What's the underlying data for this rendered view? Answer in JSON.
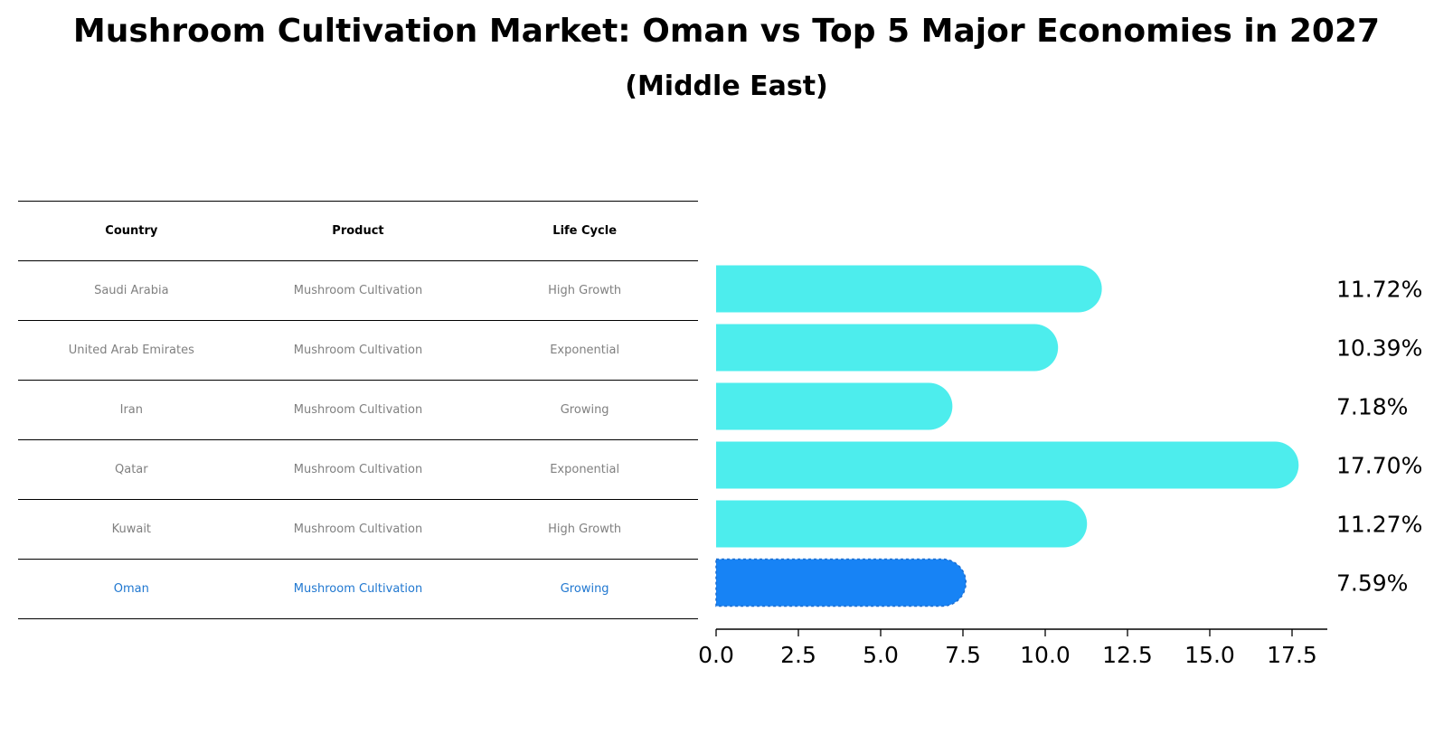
{
  "title": "Mushroom Cultivation Market: Oman vs Top 5 Major Economies in 2027",
  "subtitle": "(Middle East)",
  "table": {
    "headers": [
      "Country",
      "Product",
      "Life Cycle"
    ],
    "rows": [
      {
        "country": "Saudi Arabia",
        "product": "Mushroom Cultivation",
        "life_cycle": "High Growth"
      },
      {
        "country": "United Arab Emirates",
        "product": "Mushroom Cultivation",
        "life_cycle": "Exponential"
      },
      {
        "country": "Iran",
        "product": "Mushroom Cultivation",
        "life_cycle": "Growing"
      },
      {
        "country": "Qatar",
        "product": "Mushroom Cultivation",
        "life_cycle": "Exponential"
      },
      {
        "country": "Kuwait",
        "product": "Mushroom Cultivation",
        "life_cycle": "High Growth"
      },
      {
        "country": "Oman",
        "product": "Mushroom Cultivation",
        "life_cycle": "Growing"
      }
    ]
  },
  "chart_data": {
    "type": "bar",
    "orientation": "horizontal",
    "categories": [
      "Saudi Arabia",
      "United Arab Emirates",
      "Iran",
      "Qatar",
      "Kuwait",
      "Oman"
    ],
    "values": [
      11.72,
      10.39,
      7.18,
      17.7,
      11.27,
      7.59
    ],
    "value_labels": [
      "11.72%",
      "10.39%",
      "7.18%",
      "17.70%",
      "11.27%",
      "7.59%"
    ],
    "xlim": [
      0,
      18.7
    ],
    "xticks": [
      0.0,
      2.5,
      5.0,
      7.5,
      10.0,
      12.5,
      15.0,
      17.5
    ],
    "xtick_labels": [
      "0.0",
      "2.5",
      "5.0",
      "7.5",
      "10.0",
      "12.5",
      "15.0",
      "17.5"
    ],
    "highlight": "Oman",
    "colors": {
      "default": "#4deded",
      "highlight": "#1783f5"
    }
  }
}
